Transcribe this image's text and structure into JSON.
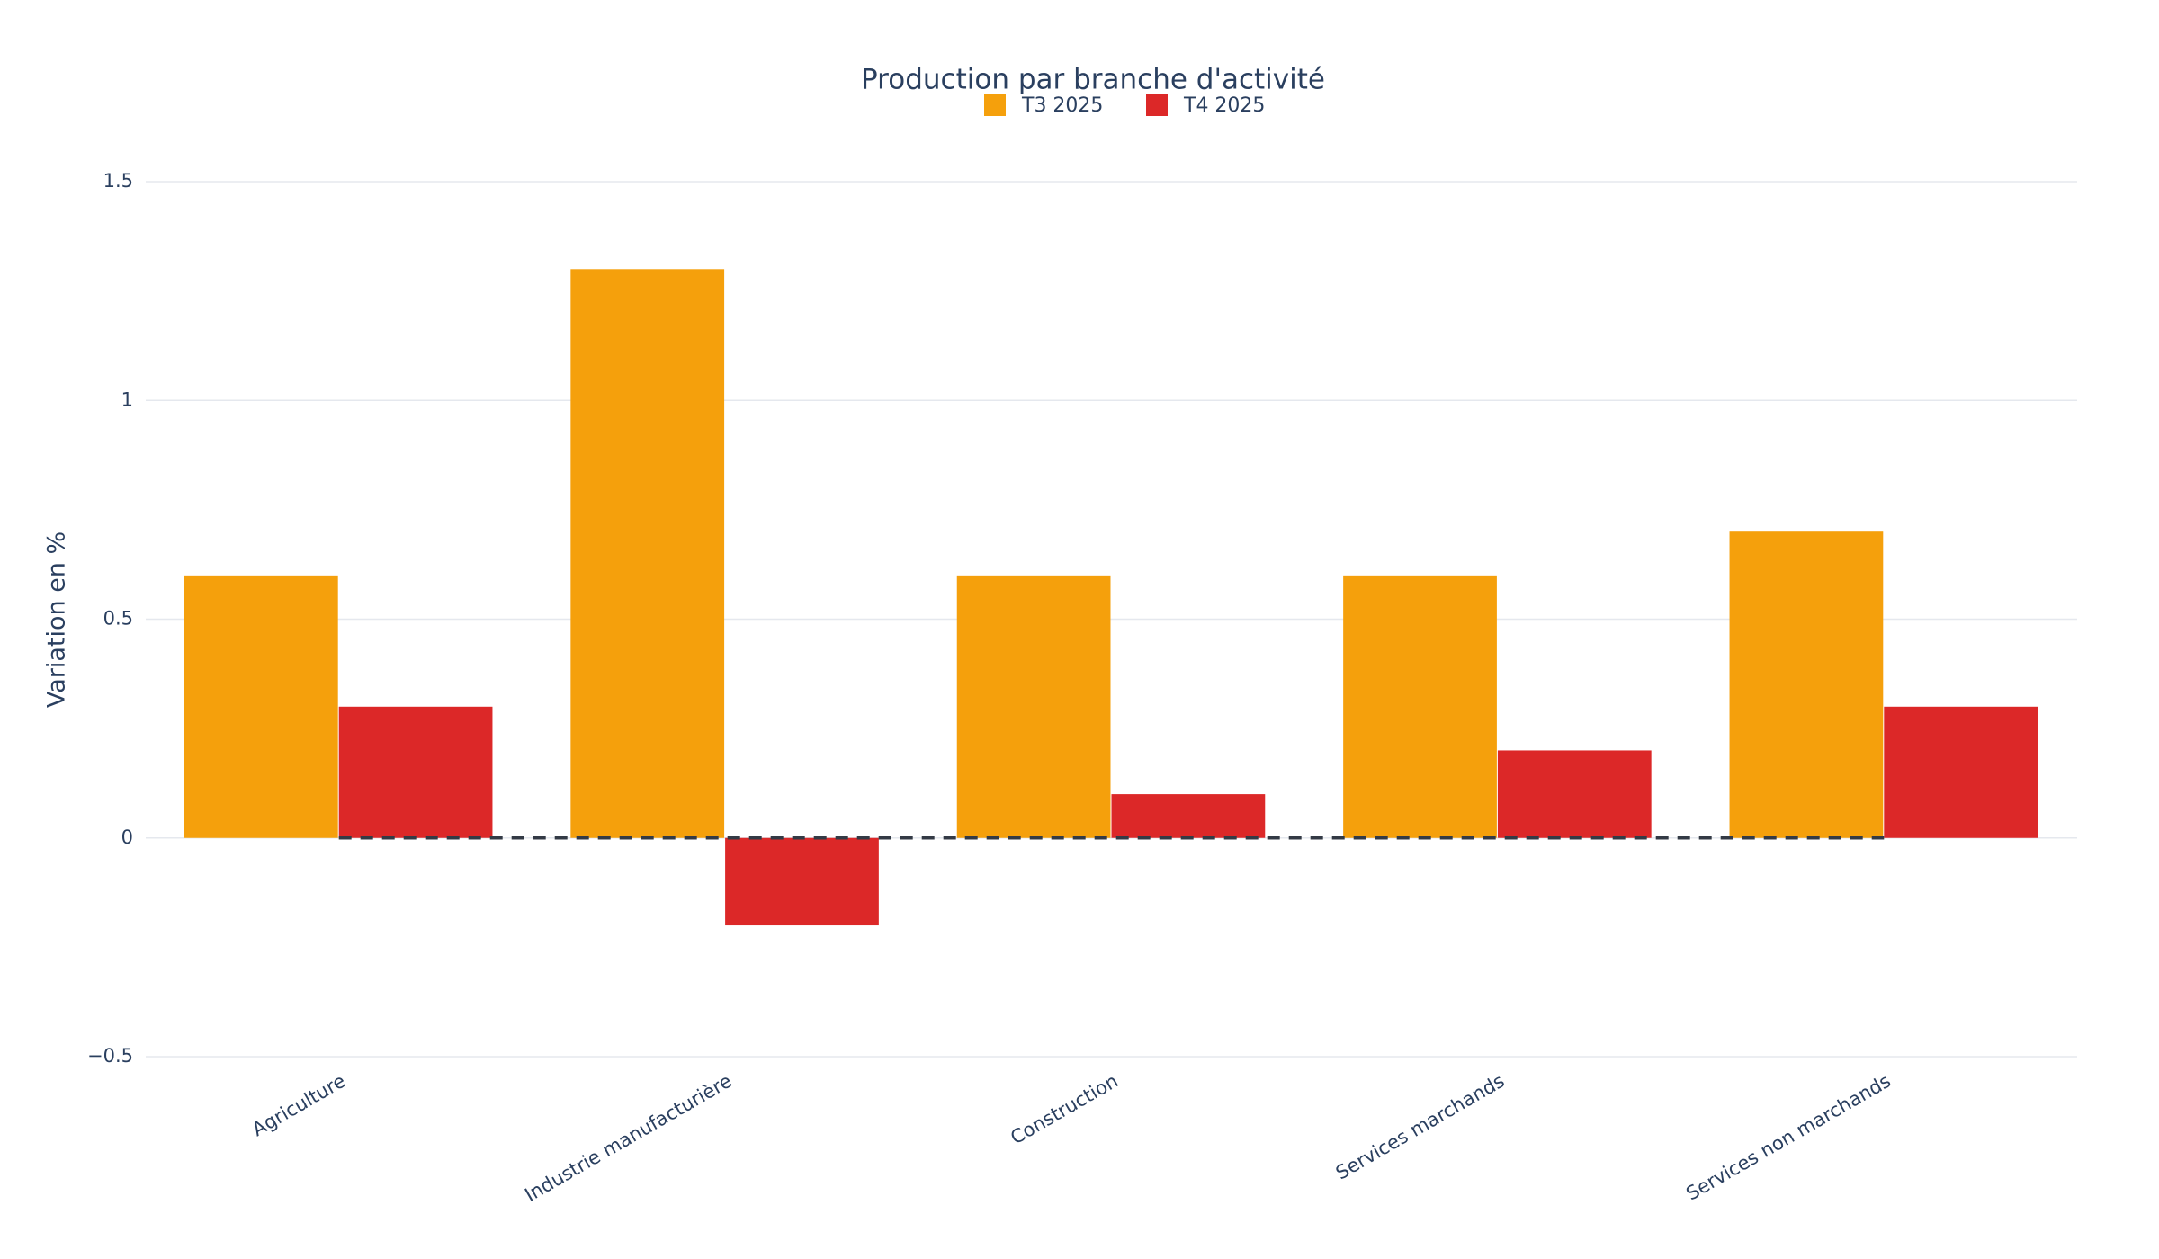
{
  "chart_data": {
    "type": "bar",
    "title": "Production par branche d'activité",
    "y_label": "Variation en %",
    "categories": [
      "Agriculture",
      "Industrie manufacturière",
      "Construction",
      "Services marchands",
      "Services non marchands"
    ],
    "series": [
      {
        "name": "T3 2025",
        "color": "#f5a00c",
        "values": [
          0.6,
          1.3,
          0.6,
          0.6,
          0.7
        ]
      },
      {
        "name": "T4 2025",
        "color": "#dc2828",
        "values": [
          0.3,
          -0.2,
          0.1,
          0.2,
          0.3
        ]
      }
    ],
    "ylim": [
      -0.5,
      1.5
    ],
    "yticks": [
      {
        "value": -0.5,
        "label": "−0.5"
      },
      0,
      0.5,
      1,
      1.5
    ],
    "grid": true,
    "hline": 0,
    "legend": "top"
  }
}
